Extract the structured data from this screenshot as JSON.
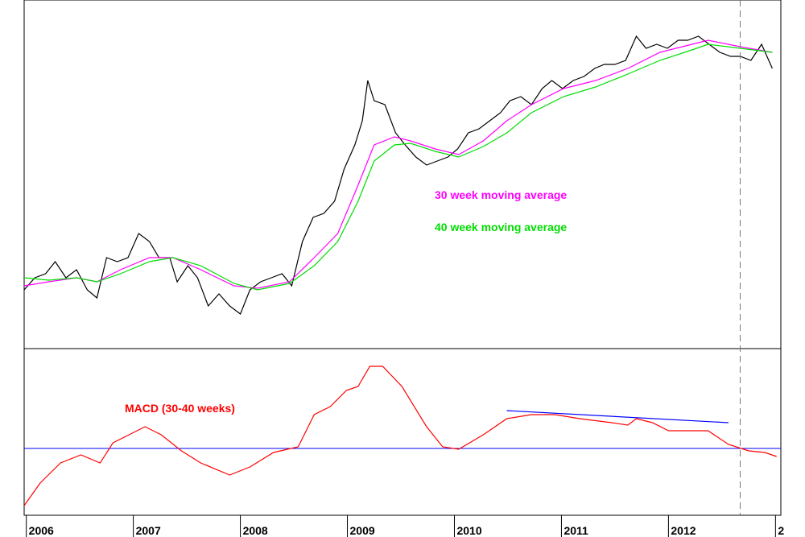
{
  "chart_data": [
    {
      "type": "line",
      "xlim": [
        2005.98,
        2013.05
      ],
      "ylim": [
        0,
        433
      ],
      "annotations": [
        "30 week moving average",
        "40 week moving average"
      ],
      "series": [
        {
          "color": "#000000",
          "x": [
            2005.98,
            2006.08,
            2006.18,
            2006.27,
            2006.37,
            2006.47,
            2006.57,
            2006.66,
            2006.75,
            2006.85,
            2006.95,
            2007.05,
            2007.15,
            2007.24,
            2007.34,
            2007.41,
            2007.51,
            2007.6,
            2007.7,
            2007.8,
            2007.9,
            2008.0,
            2008.09,
            2008.19,
            2008.29,
            2008.39,
            2008.48,
            2008.58,
            2008.68,
            2008.78,
            2008.88,
            2008.97,
            2009.07,
            2009.14,
            2009.19,
            2009.25,
            2009.35,
            2009.45,
            2009.54,
            2009.64,
            2009.74,
            2009.84,
            2009.94,
            2010.03,
            2010.13,
            2010.23,
            2010.33,
            2010.43,
            2010.52,
            2010.62,
            2010.72,
            2010.82,
            2010.91,
            2011.01,
            2011.11,
            2011.21,
            2011.31,
            2011.4,
            2011.5,
            2011.6,
            2011.7,
            2011.79,
            2011.89,
            2011.99,
            2012.09,
            2012.18,
            2012.28,
            2012.38,
            2012.48,
            2012.58,
            2012.67,
            2012.77,
            2012.87,
            2012.97
          ],
          "values": [
            73,
            88,
            93,
            108,
            88,
            98,
            73,
            63,
            113,
            108,
            113,
            143,
            133,
            113,
            113,
            83,
            103,
            88,
            53,
            68,
            53,
            43,
            73,
            83,
            88,
            93,
            78,
            133,
            163,
            168,
            183,
            223,
            253,
            283,
            333,
            308,
            303,
            268,
            253,
            238,
            228,
            233,
            238,
            248,
            268,
            273,
            283,
            293,
            308,
            313,
            303,
            323,
            333,
            323,
            333,
            338,
            348,
            353,
            353,
            358,
            388,
            373,
            378,
            373,
            383,
            383,
            388,
            378,
            368,
            363,
            363,
            358,
            378,
            348
          ]
        },
        {
          "name": "30 week moving average",
          "color": "#ff00ff",
          "x": [
            2005.98,
            2006.21,
            2006.47,
            2006.66,
            2006.88,
            2007.15,
            2007.37,
            2007.63,
            2007.94,
            2008.16,
            2008.46,
            2008.69,
            2008.91,
            2009.1,
            2009.25,
            2009.44,
            2009.59,
            2009.82,
            2010.04,
            2010.27,
            2010.49,
            2010.72,
            2011.02,
            2011.32,
            2011.62,
            2011.92,
            2012.22,
            2012.37,
            2012.67,
            2012.97
          ],
          "values": [
            78,
            83,
            88,
            83,
            98,
            113,
            113,
            98,
            78,
            75,
            83,
            113,
            143,
            203,
            253,
            263,
            258,
            248,
            241,
            258,
            283,
            303,
            323,
            333,
            348,
            368,
            378,
            383,
            375,
            368
          ]
        },
        {
          "name": "40 week moving average",
          "color": "#00dd00",
          "x": [
            2005.98,
            2006.21,
            2006.47,
            2006.66,
            2006.88,
            2007.15,
            2007.37,
            2007.63,
            2007.94,
            2008.16,
            2008.46,
            2008.69,
            2008.91,
            2009.1,
            2009.25,
            2009.44,
            2009.59,
            2009.82,
            2010.04,
            2010.27,
            2010.49,
            2010.72,
            2011.02,
            2011.32,
            2011.62,
            2011.92,
            2012.22,
            2012.37,
            2012.67,
            2012.97
          ],
          "values": [
            88,
            85,
            88,
            83,
            93,
            108,
            113,
            103,
            81,
            73,
            81,
            103,
            133,
            183,
            233,
            253,
            255,
            245,
            238,
            251,
            268,
            293,
            313,
            325,
            341,
            358,
            371,
            378,
            373,
            368
          ]
        }
      ]
    },
    {
      "type": "line",
      "xlim": [
        2005.98,
        2013.05
      ],
      "ylim": [
        -83,
        124
      ],
      "xticks": [
        2006,
        2007,
        2008,
        2009,
        2010,
        2011,
        2012,
        {
          "value": 2013,
          "label": "2"
        }
      ],
      "zero_line": 0,
      "marker_x": 2012.67,
      "trendline": {
        "x": [
          2010.49,
          2012.56
        ],
        "values": [
          47,
          32
        ],
        "color": "#0000ff"
      },
      "series": [
        {
          "name": "MACD (30-40 weeks)",
          "color": "#ff0000",
          "x": [
            2005.98,
            2006.13,
            2006.32,
            2006.51,
            2006.69,
            2006.81,
            2006.96,
            2007.11,
            2007.26,
            2007.45,
            2007.63,
            2007.9,
            2008.09,
            2008.31,
            2008.54,
            2008.69,
            2008.84,
            2008.99,
            2009.1,
            2009.21,
            2009.33,
            2009.51,
            2009.74,
            2009.89,
            2010.04,
            2010.27,
            2010.49,
            2010.72,
            2010.94,
            2011.17,
            2011.47,
            2011.62,
            2011.7,
            2011.85,
            2012.0,
            2012.22,
            2012.37,
            2012.56,
            2012.75,
            2012.9,
            2013.01
          ],
          "values": [
            -71,
            -43,
            -18,
            -8,
            -18,
            7,
            17,
            27,
            17,
            -3,
            -18,
            -33,
            -23,
            -5,
            2,
            42,
            52,
            72,
            77,
            102,
            102,
            77,
            27,
            2,
            -1,
            17,
            37,
            42,
            42,
            37,
            32,
            29,
            37,
            32,
            22,
            22,
            22,
            5,
            -3,
            -5,
            -10
          ]
        }
      ]
    }
  ]
}
